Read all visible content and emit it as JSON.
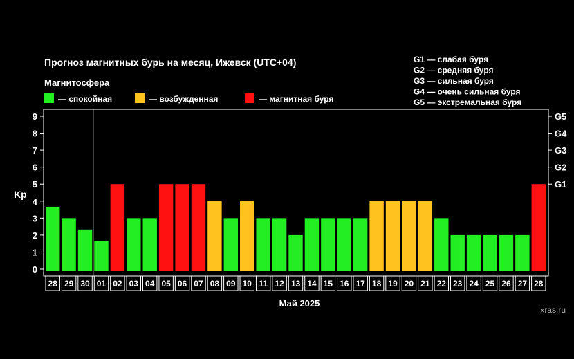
{
  "title": "Прогноз магнитных бурь на месяц, Ижевск (UTC+04)",
  "legend": {
    "heading": "Магнитосфера",
    "items": [
      {
        "label": "— спокойная",
        "color": "#22ee22"
      },
      {
        "label": "— возбужденная",
        "color": "#ffc21e"
      },
      {
        "label": "— магнитная буря",
        "color": "#ff1111"
      }
    ]
  },
  "g_legend": [
    "G1 — слабая буря",
    "G2 — средняя буря",
    "G3 — сильная буря",
    "G4 — очень сильная буря",
    "G5 — экстремальная буря"
  ],
  "source": "xras.ru",
  "chart_data": {
    "type": "bar",
    "title": "Прогноз магнитных бурь на месяц, Ижевск (UTC+04)",
    "ylabel": "Kp",
    "xlabel": "Май 2025",
    "ylim": [
      0,
      9
    ],
    "yticks": [
      0,
      1,
      2,
      3,
      4,
      5,
      6,
      7,
      8,
      9
    ],
    "g_ticks": [
      {
        "label": "G1",
        "kp": 5
      },
      {
        "label": "G2",
        "kp": 6
      },
      {
        "label": "G3",
        "kp": 7
      },
      {
        "label": "G4",
        "kp": 8
      },
      {
        "label": "G5",
        "kp": 9
      }
    ],
    "categories": [
      "28",
      "29",
      "30",
      "01",
      "02",
      "03",
      "04",
      "05",
      "06",
      "07",
      "08",
      "09",
      "10",
      "11",
      "12",
      "13",
      "14",
      "15",
      "16",
      "17",
      "18",
      "19",
      "20",
      "21",
      "22",
      "23",
      "24",
      "25",
      "26",
      "27",
      "28"
    ],
    "values": [
      3.67,
      3,
      2.33,
      1.67,
      5,
      3,
      3,
      5,
      5,
      5,
      4,
      3,
      4,
      3,
      3,
      2,
      3,
      3,
      3,
      3,
      4,
      4,
      4,
      4,
      3,
      2,
      2,
      2,
      2,
      2,
      5
    ],
    "status": [
      "quiet",
      "quiet",
      "quiet",
      "quiet",
      "storm",
      "quiet",
      "quiet",
      "storm",
      "storm",
      "storm",
      "active",
      "quiet",
      "active",
      "quiet",
      "quiet",
      "quiet",
      "quiet",
      "quiet",
      "quiet",
      "quiet",
      "active",
      "active",
      "active",
      "active",
      "quiet",
      "quiet",
      "quiet",
      "quiet",
      "quiet",
      "quiet",
      "storm"
    ],
    "status_colors": {
      "quiet": "#22ee22",
      "active": "#ffc21e",
      "storm": "#ff1111"
    },
    "month_divider_after_index": 2,
    "grid": false
  }
}
